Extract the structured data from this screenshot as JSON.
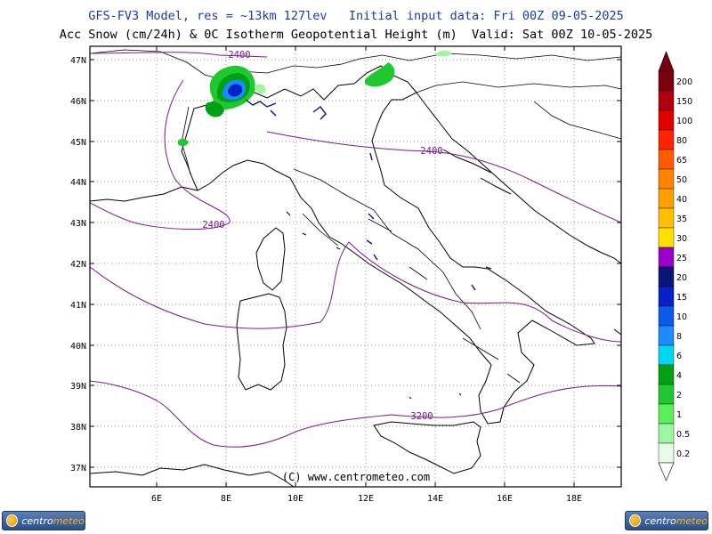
{
  "header": {
    "line1": "GFS-FV3 Model, res = ~13km 127lev   Initial input data: Fri 00Z 09-05-2025",
    "line2": "Acc Snow (cm/24h) & 0C Isotherm Geopotential Height (m)  Valid: Sat 00Z 10-05-2025"
  },
  "map": {
    "lat_ticks": [
      "47N",
      "46N",
      "45N",
      "44N",
      "43N",
      "42N",
      "41N",
      "40N",
      "39N",
      "38N",
      "37N"
    ],
    "lon_ticks": [
      "6E",
      "8E",
      "10E",
      "12E",
      "14E",
      "16E",
      "18E"
    ],
    "copyright": "(C) www.centrometeo.com",
    "contour_labels": [
      "2400",
      "2400",
      "2400",
      "3200"
    ]
  },
  "legend": {
    "levels": [
      {
        "label": "200",
        "color": "#7a0010"
      },
      {
        "label": "150",
        "color": "#b00010"
      },
      {
        "label": "100",
        "color": "#e00000"
      },
      {
        "label": "80",
        "color": "#ff2400"
      },
      {
        "label": "65",
        "color": "#ff5a00"
      },
      {
        "label": "50",
        "color": "#ff8200"
      },
      {
        "label": "40",
        "color": "#ffa000"
      },
      {
        "label": "35",
        "color": "#ffc000"
      },
      {
        "label": "30",
        "color": "#ffe000"
      },
      {
        "label": "25",
        "color": "#9a00c8"
      },
      {
        "label": "20",
        "color": "#0c1478"
      },
      {
        "label": "15",
        "color": "#0820c8"
      },
      {
        "label": "10",
        "color": "#0c5ae8"
      },
      {
        "label": "8",
        "color": "#1a8cff"
      },
      {
        "label": "6",
        "color": "#00d8f0"
      },
      {
        "label": "4",
        "color": "#00a014"
      },
      {
        "label": "2",
        "color": "#20c830"
      },
      {
        "label": "1",
        "color": "#5af05a"
      },
      {
        "label": "0.5",
        "color": "#a0f5a0"
      },
      {
        "label": "0.2",
        "color": "#e6fce6"
      }
    ]
  },
  "logos": {
    "left_prefix": "centro",
    "left_suffix": "meteo",
    "right_prefix": "centro",
    "right_suffix": "meteo"
  }
}
